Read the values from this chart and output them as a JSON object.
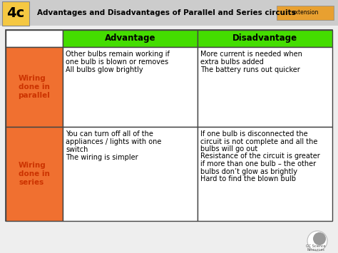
{
  "title": "Advantages and Disadvantages of Parallel and Series circuits",
  "label_4c": "4c",
  "label_extension": "extension",
  "header_col2": "Advantage",
  "header_col3": "Disadvantage",
  "row1_label": "Wiring\ndone in\nparallel",
  "row1_adv_lines": [
    "Other bulbs remain working if",
    "one bulb is blown or removes",
    "All bulbs glow brightly"
  ],
  "row1_dis_lines": [
    "More current is needed when",
    "extra bulbs added",
    "The battery runs out quicker"
  ],
  "row2_label": "Wiring\ndone in\nseries",
  "row2_adv_lines": [
    "You can turn off all of the",
    "appliances / lights with one",
    "switch",
    "The wiring is simpler"
  ],
  "row2_dis_lines": [
    "If one bulb is disconnected the",
    "circuit is not complete and all the",
    "bulbs will go out",
    "Resistance of the circuit is greater",
    "if more than one bulb – the other",
    "bulbs don’t glow as brightly",
    "Hard to find the blown bulb"
  ],
  "bg_color": "#eeeeee",
  "title_bar_color": "#cccccc",
  "label_4c_color": "#f5c842",
  "extension_color": "#e8a030",
  "orange_cell": "#f07030",
  "green_header": "#44dd00",
  "table_border": "#444444",
  "orange_text_color": "#cc3300",
  "logo_white": "#ffffff",
  "logo_gray": "#999999"
}
